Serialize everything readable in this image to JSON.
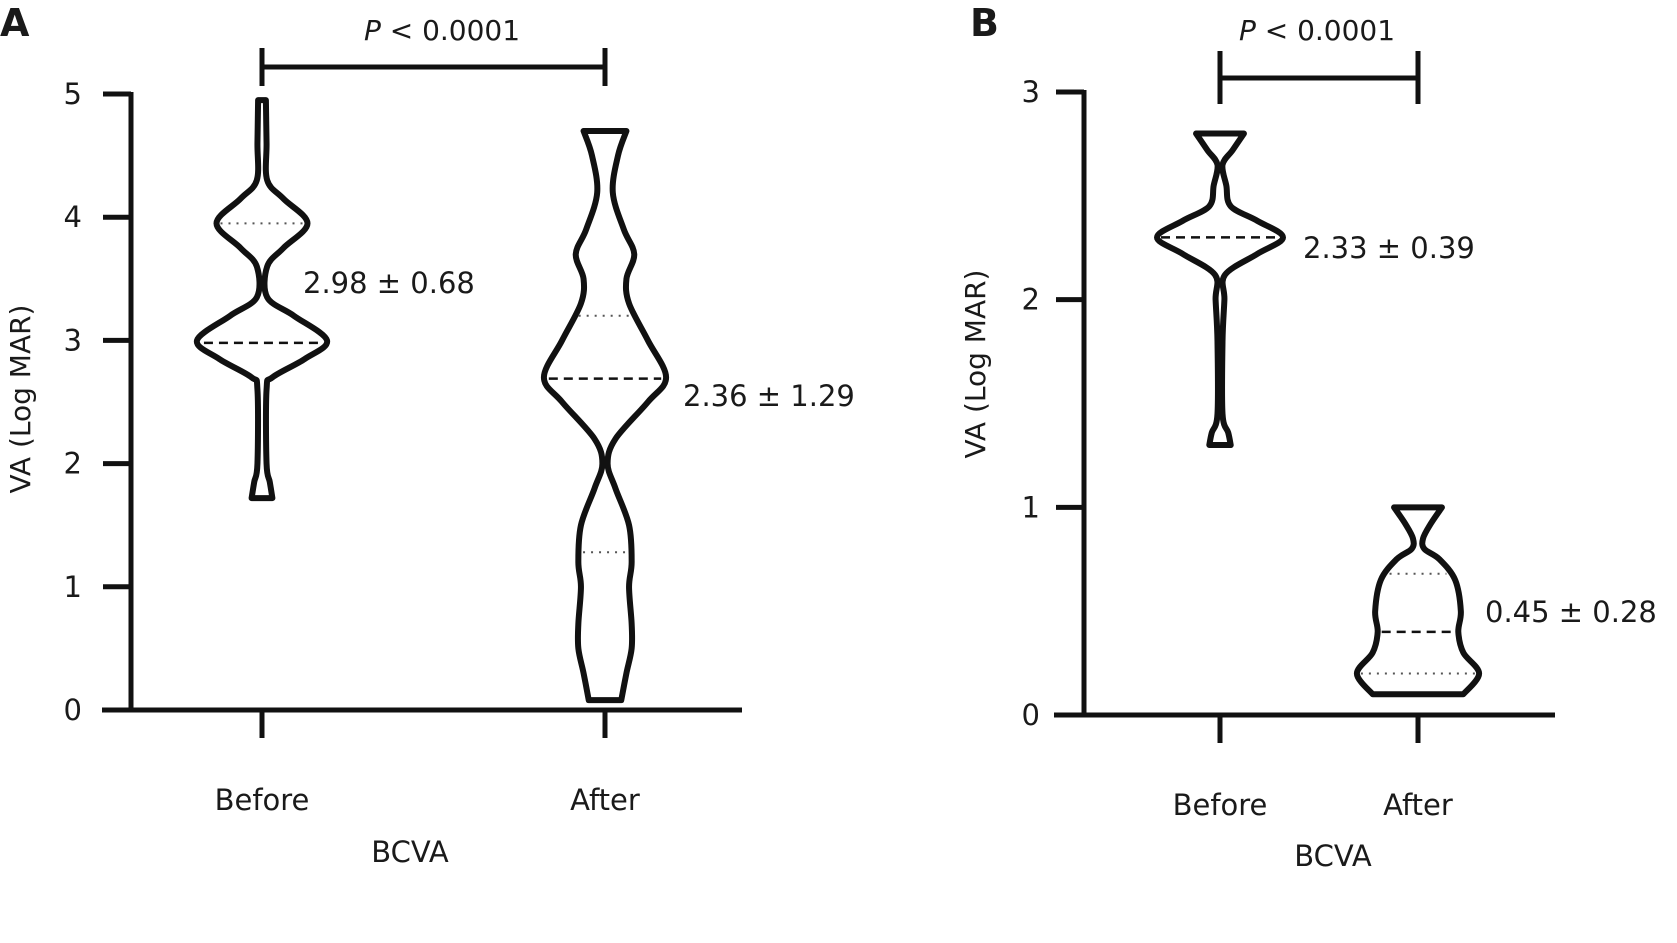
{
  "chart_data": [
    {
      "type": "violin",
      "panel_label": "A",
      "xlabel": "BCVA",
      "ylabel": "VA (Log MAR)",
      "ylim": [
        0,
        5
      ],
      "yticks": [
        "0",
        "1",
        "2",
        "3",
        "4",
        "5"
      ],
      "categories": [
        "Before",
        "After"
      ],
      "significance": {
        "prefix": "P",
        "text": " < 0.0001"
      },
      "series": [
        {
          "name": "Before",
          "annotation": "2.98 ± 0.68",
          "median": 2.98,
          "quartiles": [
            3.95
          ],
          "density": [
            [
              4.95,
              0.06
            ],
            [
              4.6,
              0.07
            ],
            [
              4.3,
              0.08
            ],
            [
              4.15,
              0.33
            ],
            [
              3.95,
              0.7
            ],
            [
              3.75,
              0.33
            ],
            [
              3.6,
              0.08
            ],
            [
              3.35,
              0.08
            ],
            [
              3.2,
              0.49
            ],
            [
              3.0,
              1.0
            ],
            [
              2.85,
              0.66
            ],
            [
              2.7,
              0.16
            ],
            [
              2.6,
              0.07
            ],
            [
              2.0,
              0.07
            ],
            [
              1.85,
              0.12
            ],
            [
              1.72,
              0.16
            ]
          ]
        },
        {
          "name": "After",
          "annotation": "2.36 ± 1.29",
          "median": 2.69,
          "quartiles": [
            3.2,
            1.28
          ],
          "density": [
            [
              4.7,
              0.33
            ],
            [
              4.5,
              0.2
            ],
            [
              4.2,
              0.12
            ],
            [
              3.9,
              0.29
            ],
            [
              3.7,
              0.45
            ],
            [
              3.5,
              0.33
            ],
            [
              3.3,
              0.37
            ],
            [
              3.0,
              0.66
            ],
            [
              2.7,
              0.94
            ],
            [
              2.5,
              0.66
            ],
            [
              2.2,
              0.16
            ],
            [
              2.0,
              0.04
            ],
            [
              1.8,
              0.16
            ],
            [
              1.5,
              0.37
            ],
            [
              1.2,
              0.41
            ],
            [
              1.0,
              0.37
            ],
            [
              0.7,
              0.41
            ],
            [
              0.5,
              0.41
            ],
            [
              0.3,
              0.33
            ],
            [
              0.08,
              0.25
            ]
          ]
        }
      ]
    },
    {
      "type": "violin",
      "panel_label": "B",
      "xlabel": "BCVA",
      "ylabel": "VA (Log MAR)",
      "ylim": [
        0,
        3
      ],
      "yticks": [
        "0",
        "1",
        "2",
        "3"
      ],
      "categories": [
        "Before",
        "After"
      ],
      "significance": {
        "prefix": "P",
        "text": " < 0.0001"
      },
      "series": [
        {
          "name": "Before",
          "annotation": "2.33 ± 0.39",
          "median": 2.3,
          "quartiles": [],
          "density": [
            [
              2.8,
              0.38
            ],
            [
              2.72,
              0.2
            ],
            [
              2.65,
              0.04
            ],
            [
              2.55,
              0.1
            ],
            [
              2.45,
              0.17
            ],
            [
              2.38,
              0.59
            ],
            [
              2.3,
              1.0
            ],
            [
              2.22,
              0.59
            ],
            [
              2.12,
              0.08
            ],
            [
              2.0,
              0.07
            ],
            [
              1.8,
              0.04
            ],
            [
              1.45,
              0.04
            ],
            [
              1.36,
              0.13
            ],
            [
              1.3,
              0.17
            ]
          ]
        },
        {
          "name": "After",
          "annotation": "0.45 ± 0.28",
          "median": 0.4,
          "quartiles": [
            0.68,
            0.2
          ],
          "density": [
            [
              1.0,
              0.38
            ],
            [
              0.92,
              0.2
            ],
            [
              0.85,
              0.08
            ],
            [
              0.8,
              0.1
            ],
            [
              0.75,
              0.34
            ],
            [
              0.65,
              0.59
            ],
            [
              0.5,
              0.68
            ],
            [
              0.4,
              0.64
            ],
            [
              0.3,
              0.72
            ],
            [
              0.2,
              0.97
            ],
            [
              0.1,
              0.72
            ]
          ]
        }
      ]
    }
  ]
}
